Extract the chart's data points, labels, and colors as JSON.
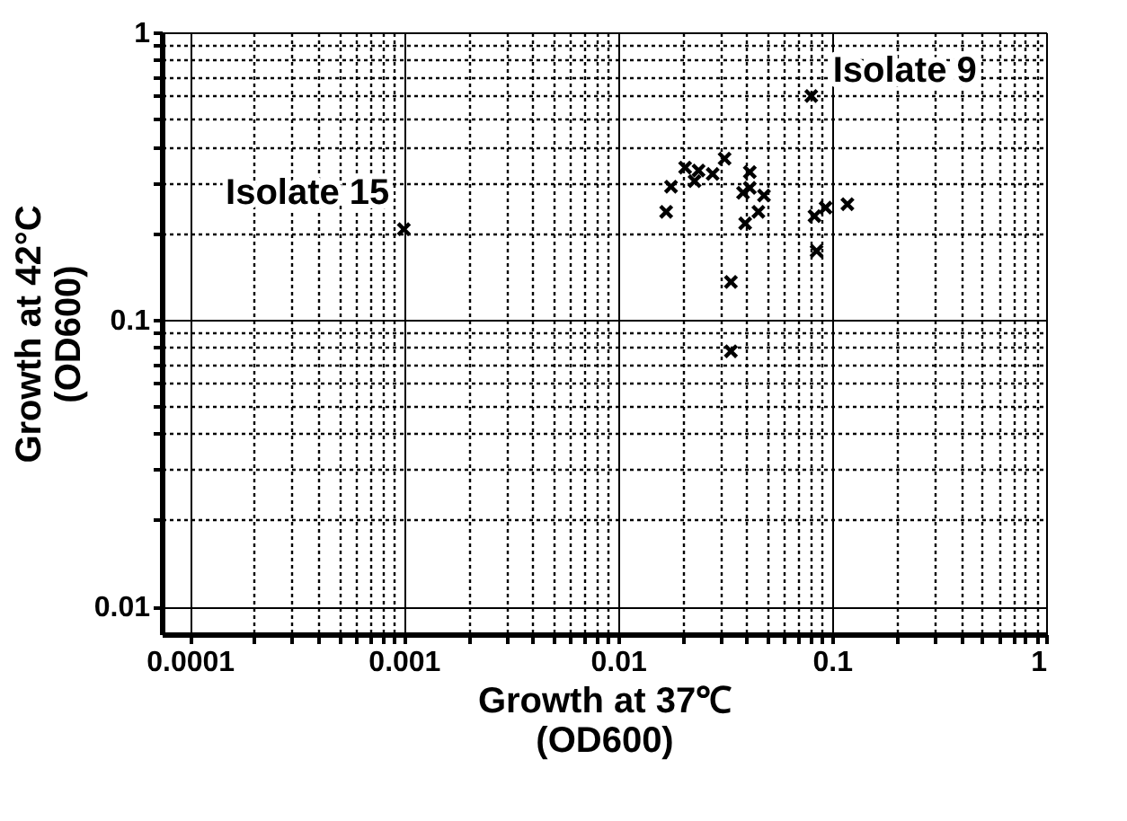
{
  "chart_data": {
    "type": "scatter",
    "xlabel": "Growth at 37℃\n(OD600)",
    "ylabel": "Growth at 42°C\n(OD600)",
    "log": "xy",
    "grid": true,
    "marker": "cross",
    "xlim": [
      7.4e-05,
      1
    ],
    "ylim": [
      0.008,
      1
    ],
    "xticks": [
      0.0001,
      {
        "value": 0.0002,
        "label": null
      },
      {
        "value": 0.0003,
        "label": null
      },
      {
        "value": 0.0004,
        "label": null
      },
      {
        "value": 0.0005,
        "label": null
      },
      {
        "value": 0.0006,
        "label": null
      },
      {
        "value": 0.0007,
        "label": null
      },
      {
        "value": 0.0008,
        "label": null
      },
      {
        "value": 0.0009,
        "label": null
      },
      0.001,
      {
        "value": 0.002,
        "label": null
      },
      {
        "value": 0.003,
        "label": null
      },
      {
        "value": 0.004,
        "label": null
      },
      {
        "value": 0.005,
        "label": null
      },
      {
        "value": 0.006,
        "label": null
      },
      {
        "value": 0.007,
        "label": null
      },
      {
        "value": 0.008,
        "label": null
      },
      {
        "value": 0.009,
        "label": null
      },
      0.01,
      {
        "value": 0.02,
        "label": null
      },
      {
        "value": 0.03,
        "label": null
      },
      {
        "value": 0.04,
        "label": null
      },
      {
        "value": 0.05,
        "label": null
      },
      {
        "value": 0.06,
        "label": null
      },
      {
        "value": 0.07,
        "label": null
      },
      {
        "value": 0.08,
        "label": null
      },
      {
        "value": 0.09,
        "label": null
      },
      0.1,
      {
        "value": 0.2,
        "label": null
      },
      {
        "value": 0.3,
        "label": null
      },
      {
        "value": 0.4,
        "label": null
      },
      {
        "value": 0.5,
        "label": null
      },
      {
        "value": 0.6,
        "label": null
      },
      {
        "value": 0.7,
        "label": null
      },
      {
        "value": 0.8,
        "label": null
      },
      {
        "value": 0.9,
        "label": null
      },
      1
    ],
    "yticks": [
      0.01,
      {
        "value": 0.02,
        "label": null
      },
      {
        "value": 0.03,
        "label": null
      },
      {
        "value": 0.04,
        "label": null
      },
      {
        "value": 0.05,
        "label": null
      },
      {
        "value": 0.06,
        "label": null
      },
      {
        "value": 0.07,
        "label": null
      },
      {
        "value": 0.08,
        "label": null
      },
      {
        "value": 0.09,
        "label": null
      },
      0.1,
      {
        "value": 0.2,
        "label": null
      },
      {
        "value": 0.3,
        "label": null
      },
      {
        "value": 0.4,
        "label": null
      },
      {
        "value": 0.5,
        "label": null
      },
      {
        "value": 0.6,
        "label": null
      },
      {
        "value": 0.7,
        "label": null
      },
      {
        "value": 0.8,
        "label": null
      },
      {
        "value": 0.9,
        "label": null
      },
      1
    ],
    "series": [
      {
        "color": "#000000",
        "x": [
          0.08,
          0.0168,
          0.0177,
          0.0206,
          0.0228,
          0.0238,
          0.0277,
          0.0315,
          0.0413,
          0.0384,
          0.0413,
          0.0481,
          0.0453,
          0.0393,
          0.0337,
          0.0337,
          0.0828,
          0.0933,
          0.0847,
          0.118,
          0.001
        ],
        "values": [
          0.6,
          0.237,
          0.29,
          0.338,
          0.303,
          0.33,
          0.321,
          0.363,
          0.326,
          0.276,
          0.287,
          0.27,
          0.237,
          0.216,
          0.135,
          0.0774,
          0.229,
          0.245,
          0.173,
          0.252,
          0.206
        ]
      }
    ],
    "annotations": [
      {
        "text": "Isolate 9",
        "x": 0.08,
        "y": 0.6
      },
      {
        "text": "Isolate 15",
        "x": 0.001,
        "y": 0.206
      }
    ]
  }
}
